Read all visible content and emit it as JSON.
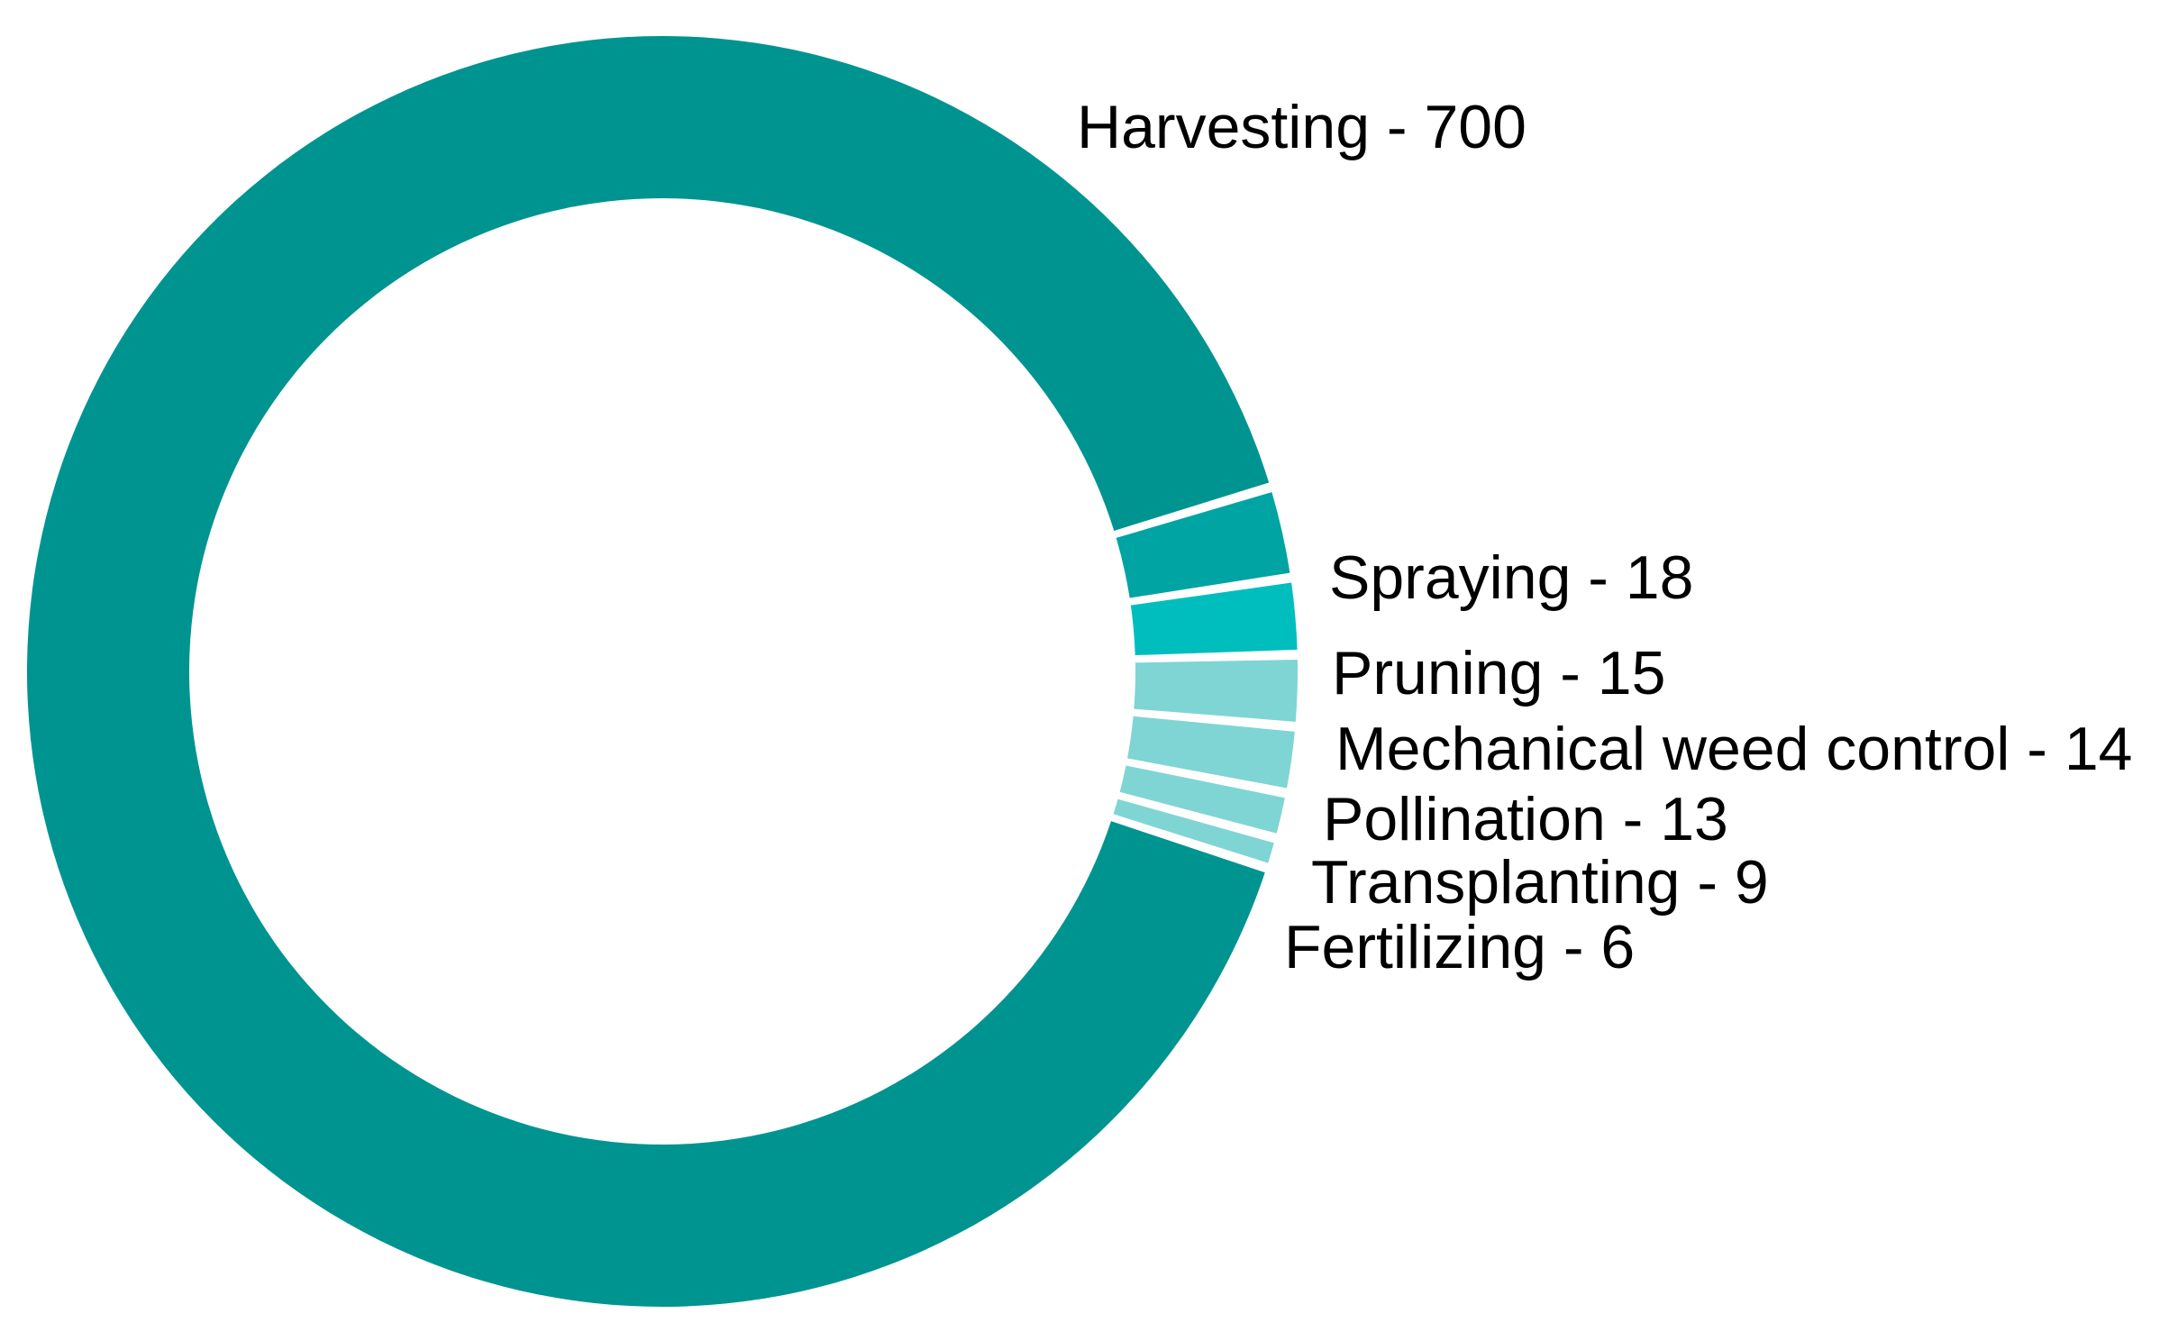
{
  "chart_data": {
    "type": "donut",
    "title": "",
    "label_separator": " - ",
    "slices": [
      {
        "label": "Harvesting",
        "value": 700,
        "color": "#009491"
      },
      {
        "label": "Spraying",
        "value": 18,
        "color": "#00A4A3"
      },
      {
        "label": "Pruning",
        "value": 15,
        "color": "#00BEBE"
      },
      {
        "label": "Mechanical weed control",
        "value": 14,
        "color": "#7ED5D4"
      },
      {
        "label": "Pollination",
        "value": 13,
        "color": "#7ED5D4"
      },
      {
        "label": "Transplanting",
        "value": 9,
        "color": "#7ED5D4"
      },
      {
        "label": "Fertilizing",
        "value": 6,
        "color": "#7ED5D4"
      }
    ]
  }
}
